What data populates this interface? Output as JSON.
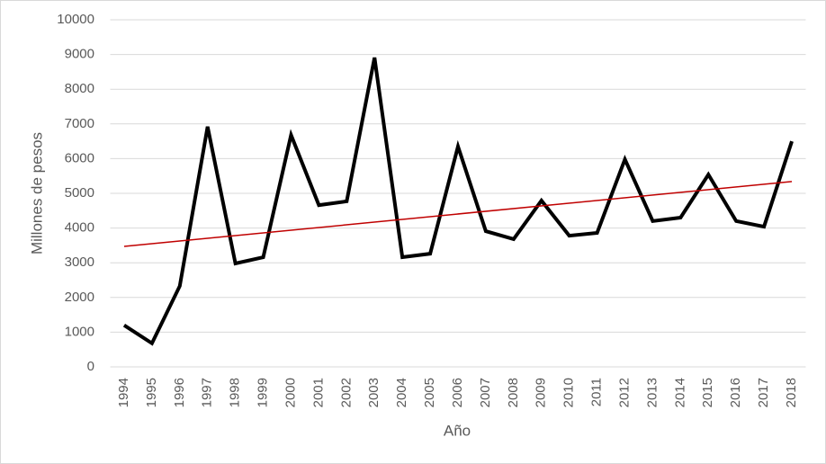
{
  "chart_data": {
    "type": "line",
    "x_label": "Año",
    "y_label": "Millones de pesos",
    "categories": [
      "1994",
      "1995",
      "1996",
      "1997",
      "1998",
      "1999",
      "2000",
      "2001",
      "2002",
      "2003",
      "2004",
      "2005",
      "2006",
      "2007",
      "2008",
      "2009",
      "2010",
      "2011",
      "2012",
      "2013",
      "2014",
      "2015",
      "2016",
      "2017",
      "2018"
    ],
    "series": [
      {
        "color": "#000000",
        "values": [
          1200,
          680,
          2330,
          6920,
          2980,
          3160,
          6680,
          4660,
          4770,
          8910,
          3160,
          3260,
          6350,
          3910,
          3680,
          4790,
          3780,
          3860,
          5980,
          4200,
          4300,
          5540,
          4200,
          4040,
          6500
        ]
      }
    ],
    "trendline": {
      "color": "#c00000",
      "values": [
        3470,
        5340
      ]
    },
    "ylim": [
      0,
      10000
    ],
    "yticks": [
      0,
      1000,
      2000,
      3000,
      4000,
      5000,
      6000,
      7000,
      8000,
      9000,
      10000
    ],
    "grid": true
  }
}
